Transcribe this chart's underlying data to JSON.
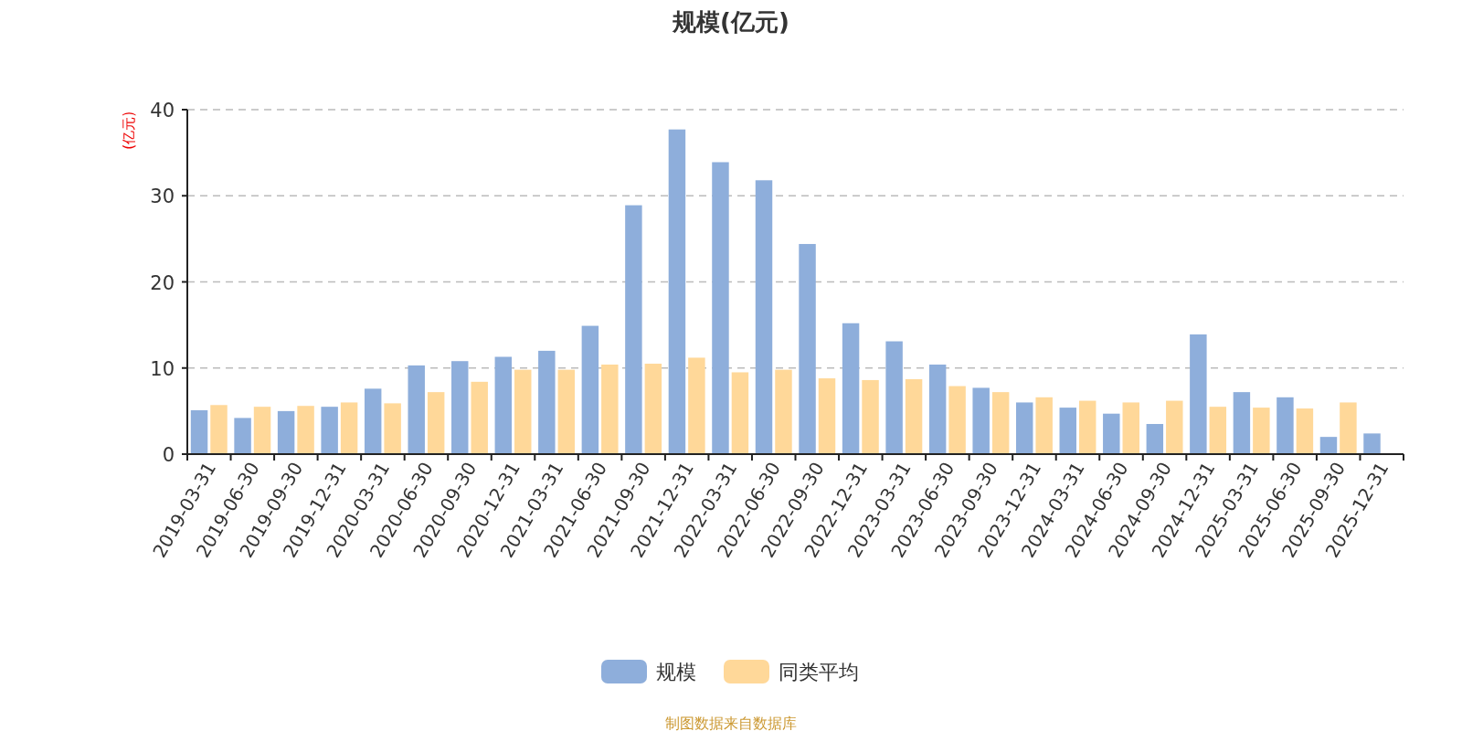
{
  "chart_data": {
    "type": "bar",
    "title": "规模(亿元)",
    "ylabel": "(亿元)",
    "annotations": [
      "制图数据来自数据库"
    ],
    "categories": [
      "2019-03-31",
      "2019-06-30",
      "2019-09-30",
      "2019-12-31",
      "2020-03-31",
      "2020-06-30",
      "2020-09-30",
      "2020-12-31",
      "2021-03-31",
      "2021-06-30",
      "2021-09-30",
      "2021-12-31",
      "2022-03-31",
      "2022-06-30",
      "2022-09-30",
      "2022-12-31",
      "2023-03-31",
      "2023-06-30",
      "2023-09-30",
      "2023-12-31",
      "2024-03-31",
      "2024-06-30",
      "2024-09-30",
      "2024-12-31",
      "2025-03-31",
      "2025-06-30",
      "2025-09-30",
      "2025-12-31"
    ],
    "series": [
      {
        "name": "规模",
        "color": "#8eaedb",
        "values": [
          5.1,
          4.2,
          5.0,
          5.5,
          7.6,
          10.3,
          10.8,
          11.3,
          12.0,
          14.9,
          28.9,
          37.7,
          33.9,
          31.8,
          24.4,
          15.2,
          13.1,
          10.4,
          7.7,
          6.0,
          5.4,
          4.7,
          3.5,
          13.9,
          7.2,
          6.6,
          2.0,
          2.4
        ]
      },
      {
        "name": "同类平均",
        "color": "#ffd899",
        "values": [
          5.7,
          5.5,
          5.6,
          6.0,
          5.9,
          7.2,
          8.4,
          9.8,
          9.8,
          10.4,
          10.5,
          11.2,
          9.5,
          9.8,
          8.8,
          8.6,
          8.7,
          7.9,
          7.2,
          6.6,
          6.2,
          6.0,
          6.2,
          5.5,
          5.4,
          5.3,
          6.0,
          null
        ]
      }
    ],
    "ylim": [
      0,
      40
    ],
    "yticks": [
      0,
      10,
      20,
      30,
      40
    ],
    "grid": "y",
    "legend": "bottom"
  }
}
